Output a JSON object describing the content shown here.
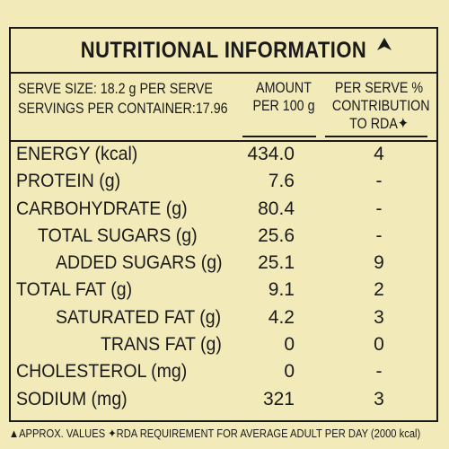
{
  "title": "NUTRITIONAL INFORMATION",
  "title_mark": "▲",
  "serve_size": "SERVE SIZE: 18.2 g PER SERVE",
  "servings": "SERVINGS PER CONTAINER:17.96",
  "col_amount_line1": "AMOUNT",
  "col_amount_line2": "PER 100 g",
  "col_rda_line1": "PER SERVE %",
  "col_rda_line2": "CONTRIBUTION",
  "col_rda_line3": "TO RDA✦",
  "rows": [
    {
      "name": "ENERGY (kcal)",
      "amount": "434.0",
      "rda": "4"
    },
    {
      "name": "PROTEIN (g)",
      "amount": "7.6",
      "rda": "-"
    },
    {
      "name": "CARBOHYDRATE (g)",
      "amount": "80.4",
      "rda": "-"
    },
    {
      "name": "TOTAL SUGARS (g)",
      "amount": "25.6",
      "rda": "-"
    },
    {
      "name": "ADDED SUGARS (g)",
      "amount": "25.1",
      "rda": "9"
    },
    {
      "name": "TOTAL FAT (g)",
      "amount": "9.1",
      "rda": "2"
    },
    {
      "name": "SATURATED FAT (g)",
      "amount": "4.2",
      "rda": "3"
    },
    {
      "name": "TRANS FAT (g)",
      "amount": "0",
      "rda": "0"
    },
    {
      "name": "CHOLESTEROL (mg)",
      "amount": "0",
      "rda": "-"
    },
    {
      "name": "SODIUM (mg)",
      "amount": "321",
      "rda": "3"
    }
  ],
  "footnote": "▲APPROX. VALUES ✦RDA REQUIREMENT FOR AVERAGE ADULT PER DAY (2000 kcal)"
}
